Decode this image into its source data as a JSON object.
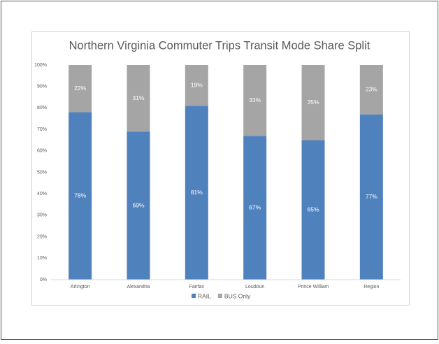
{
  "chart_data": {
    "type": "stacked_bar",
    "title": "Northern Virginia Commuter Trips Transit Mode Share Split",
    "categories": [
      "Arlington",
      "Alexandria",
      "Fairfax",
      "Loudoun",
      "Prince William",
      "Region"
    ],
    "series": [
      {
        "name": "RAIL",
        "color": "#4f81bd",
        "values": [
          78,
          69,
          81,
          67,
          65,
          77
        ],
        "value_labels": [
          "78%",
          "69%",
          "81%",
          "67%",
          "65%",
          "77%"
        ]
      },
      {
        "name": "BUS Only",
        "color": "#a5a5a5",
        "values": [
          22,
          31,
          19,
          33,
          35,
          23
        ],
        "value_labels": [
          "22%",
          "31%",
          "19%",
          "33%",
          "35%",
          "23%"
        ]
      }
    ],
    "ylim": [
      0,
      100
    ],
    "yticks": [
      {
        "value": 0,
        "label": "0%"
      },
      {
        "value": 10,
        "label": "10%"
      },
      {
        "value": 20,
        "label": "20%"
      },
      {
        "value": 30,
        "label": "30%"
      },
      {
        "value": 40,
        "label": "40%"
      },
      {
        "value": 50,
        "label": "50%"
      },
      {
        "value": 60,
        "label": "60%"
      },
      {
        "value": 70,
        "label": "70%"
      },
      {
        "value": 80,
        "label": "80%"
      },
      {
        "value": 90,
        "label": "90%"
      },
      {
        "value": 100,
        "label": "100%"
      }
    ],
    "legend": "bottom"
  }
}
